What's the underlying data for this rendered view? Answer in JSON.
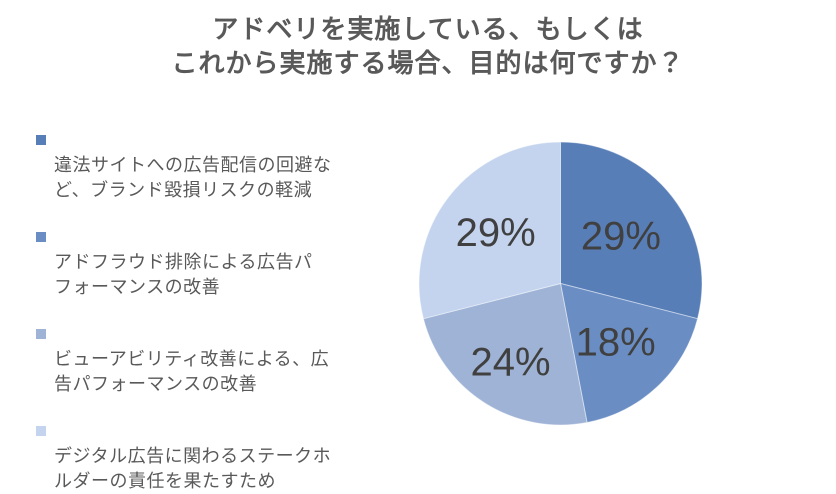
{
  "title": {
    "line1": "アドベリを実施している、もしくは",
    "line2": "これから実施する場合、目的は何ですか？"
  },
  "legend": {
    "items": [
      {
        "label": "違法サイトへの広告配信の回避な\nど、ブランド毀損リスクの軽減",
        "color": "#587EB8"
      },
      {
        "label": "アドフラウド排除による広告パ\nフォーマンスの改善",
        "color": "#6A8EC4"
      },
      {
        "label": "ビューアビリティ改善による、広\n告パフォーマンスの改善",
        "color": "#9FB3D6"
      },
      {
        "label": "デジタル広告に関わるステークホ\nルダーの責任を果たすため",
        "color": "#C4D4EE"
      }
    ]
  },
  "chart_data": {
    "type": "pie",
    "title": "アドベリを実施している、もしくはこれから実施する場合、目的は何ですか？",
    "labels": [
      "違法サイトへの広告配信の回避など、ブランド毀損リスクの軽減",
      "アドフラウド排除による広告パフォーマンスの改善",
      "ビューアビリティ改善による、広告パフォーマンスの改善",
      "デジタル広告に関わるステークホルダーの責任を果たすため"
    ],
    "values": [
      29,
      18,
      24,
      29
    ],
    "display_labels": [
      "29%",
      "18%",
      "24%",
      "29%"
    ],
    "colors": [
      "#587EB8",
      "#6A8EC4",
      "#9FB3D6",
      "#C4D4EE"
    ],
    "label_color": "#404040",
    "label_radius_frac": [
      0.54,
      0.57,
      0.66,
      0.58
    ],
    "start_angle_deg": 0,
    "direction": "clockwise",
    "legend_position": "left"
  }
}
